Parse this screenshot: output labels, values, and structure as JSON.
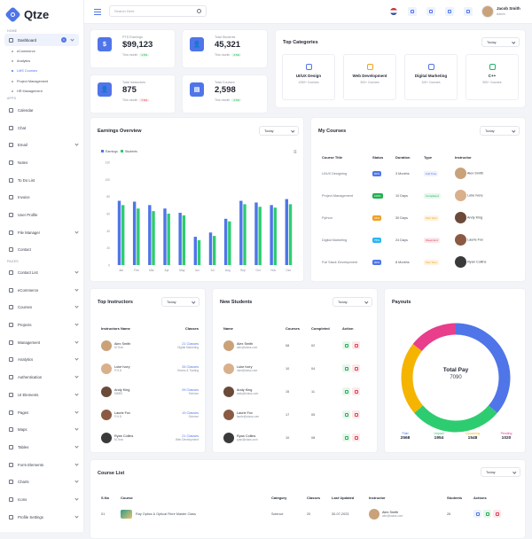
{
  "brand": {
    "name": "Qtze"
  },
  "sidebar": {
    "sections": {
      "home": "HOME",
      "apps": "APPS",
      "pages": "PAGES"
    },
    "dashboard": {
      "label": "Dashboard",
      "badge": "6"
    },
    "sub": [
      "eCommerce",
      "Analytics",
      "LMS Courses",
      "Project Management",
      "HR Management"
    ],
    "apps": [
      "Calendar",
      "Chat",
      "Email",
      "Notes",
      "To Do List",
      "Invoice",
      "User Profile",
      "File Manager",
      "Contact"
    ],
    "pages": [
      "Contact List",
      "eCommerce",
      "Courses",
      "Projects",
      "Management",
      "Analytics",
      "Authentication",
      "UI Elements",
      "Pages",
      "Maps",
      "Tables",
      "Form Elements",
      "Charts",
      "Icons",
      "Profile Settings"
    ]
  },
  "topbar": {
    "search_placeholder": "Search Here",
    "user_name": "Jacob Smith",
    "user_role": "Admin"
  },
  "stats": [
    {
      "label": "PTD Earnings",
      "value": "$99,123",
      "meta": "This month",
      "change": "4.5%",
      "dir": "up",
      "icon": "$"
    },
    {
      "label": "Total Students",
      "value": "45,321",
      "meta": "This month",
      "change": "4.5%",
      "dir": "up",
      "icon": "👤"
    },
    {
      "label": "Total Instructors",
      "value": "875",
      "meta": "This month",
      "change": "7.6%",
      "dir": "dn",
      "icon": "👤"
    },
    {
      "label": "Total Courses",
      "value": "2,598",
      "meta": "This month",
      "change": "4.5%",
      "dir": "up",
      "icon": "▤"
    }
  ],
  "top_categories": {
    "title": "Top Categories",
    "filter": "Today",
    "items": [
      {
        "name": "UI/UX Design",
        "count": "1250+ Courses",
        "color": "#4f75e8"
      },
      {
        "name": "Web Development",
        "count": "300+ Courses",
        "color": "#f0a020"
      },
      {
        "name": "Digital Marketing",
        "count": "100+ Courses",
        "color": "#4f75e8"
      },
      {
        "name": "C++",
        "count": "500+ Courses",
        "color": "#22b070"
      }
    ]
  },
  "earnings": {
    "title": "Earnings Overview",
    "filter": "Today"
  },
  "chart_data": {
    "type": "bar",
    "categories": [
      "Jan",
      "Feb",
      "Mar",
      "Apr",
      "May",
      "Jun",
      "Jul",
      "Aug",
      "Sep",
      "Oct",
      "Nov",
      "Dec"
    ],
    "series": [
      {
        "name": "Earnings",
        "values": [
          75,
          74,
          70,
          66,
          61,
          33,
          38,
          54,
          75,
          73,
          70,
          77
        ],
        "color": "#4f75e8"
      },
      {
        "name": "Students",
        "values": [
          70,
          66,
          63,
          60,
          58,
          29,
          34,
          51,
          71,
          68,
          67,
          71
        ],
        "color": "#2ecc71"
      }
    ],
    "yticks": [
      "120",
      "100",
      "80",
      "60",
      "40",
      "20",
      "0"
    ],
    "ylim": [
      0,
      120
    ],
    "legend": "top-left"
  },
  "my_courses": {
    "title": "My Courses",
    "filter": "Today",
    "headers": [
      "Course Title",
      "Status",
      "Duration",
      "Type",
      "Instructor"
    ],
    "rows": [
      {
        "title": "UI/UX Designing",
        "status": "60%",
        "scolor": "#4f75e8",
        "duration": "3 Months",
        "type": "Full Time",
        "tcolor": "#4f75e8",
        "tbg": "#eef2fd",
        "instructor": "Alex Smith",
        "av": "#c9a27a"
      },
      {
        "title": "Project Management",
        "status": "100%",
        "scolor": "#22b050",
        "duration": "10 Days",
        "type": "Completed",
        "tcolor": "#22b050",
        "tbg": "#e6f7ec",
        "instructor": "Luke Ivory",
        "av": "#d9b08c"
      },
      {
        "title": "Python",
        "status": "35%",
        "scolor": "#f0a020",
        "duration": "30 Days",
        "type": "Part Time",
        "tcolor": "#f0a020",
        "tbg": "#fdf3e1",
        "instructor": "Andy King",
        "av": "#6b4a3a"
      },
      {
        "title": "Digital Marketing",
        "status": "75%",
        "scolor": "#29b6f6",
        "duration": "24 Days",
        "type": "Week End",
        "tcolor": "#e0424f",
        "tbg": "#fde8ea",
        "instructor": "Laurie Fox",
        "av": "#8a5a44"
      },
      {
        "title": "Full Stack Development",
        "status": "90%",
        "scolor": "#4f75e8",
        "duration": "8 Months",
        "type": "Part Time",
        "tcolor": "#f0a020",
        "tbg": "#fdf3e1",
        "instructor": "Ryan Collins",
        "av": "#3a3a3a"
      }
    ]
  },
  "top_instructors": {
    "title": "Top Instructors",
    "filter": "Today",
    "headers": [
      "Instructors Name",
      "Classes"
    ],
    "rows": [
      {
        "name": "Alex Smith",
        "sub": "M.Tech",
        "classes": "21 Classes",
        "topic": "Digital Marketing",
        "av": "#c9a27a"
      },
      {
        "name": "Luke Ivory",
        "sub": "P.H.D.",
        "classes": "26 Classes",
        "topic": "Stocks & Trading",
        "av": "#d9b08c"
      },
      {
        "name": "Andy King",
        "sub": "MBBS",
        "classes": "09 Classes",
        "topic": "Science",
        "av": "#6b4a3a"
      },
      {
        "name": "Laurie Fox",
        "sub": "P.H.D.",
        "classes": "19 Classes",
        "topic": "Science",
        "av": "#8a5a44"
      },
      {
        "name": "Ryan Collins",
        "sub": "M.Tech",
        "classes": "21 Classes",
        "topic": "Web Development",
        "av": "#3a3a3a"
      }
    ]
  },
  "new_students": {
    "title": "New Students",
    "filter": "Today",
    "headers": [
      "Name",
      "Courses",
      "Completed",
      "Action"
    ],
    "rows": [
      {
        "name": "Alex Smith",
        "email": "alex@class.com",
        "courses": "08",
        "completed": "02",
        "av": "#c9a27a"
      },
      {
        "name": "Luke Ivory",
        "email": "luke@class.com",
        "courses": "10",
        "completed": "04",
        "av": "#d9b08c"
      },
      {
        "name": "Andy King",
        "email": "andy@class.com",
        "courses": "15",
        "completed": "11",
        "av": "#6b4a3a"
      },
      {
        "name": "Laurie Fox",
        "email": "laurie@class.com",
        "courses": "17",
        "completed": "05",
        "av": "#8a5a44"
      },
      {
        "name": "Ryan Collins",
        "email": "ryan@class.com",
        "courses": "10",
        "completed": "08",
        "av": "#3a3a3a"
      }
    ]
  },
  "payouts": {
    "title": "Payouts",
    "center_label": "Total Pay",
    "center_value": "7090",
    "items": [
      {
        "label": "Paid",
        "value": "2568",
        "color": "#4f75e8"
      },
      {
        "label": "Unpaid",
        "value": "1954",
        "color": "#2ecc71"
      },
      {
        "label": "Upcoming",
        "value": "1548",
        "color": "#f5b400"
      },
      {
        "label": "Pending",
        "value": "1020",
        "color": "#e83e8c"
      }
    ]
  },
  "course_list": {
    "title": "Course List",
    "filter": "Today",
    "headers": [
      "S.No",
      "Course",
      "Category",
      "Classes",
      "Last Updated",
      "Instructor",
      "Students",
      "Actions"
    ],
    "rows": [
      {
        "no": "01",
        "course": "Ray Optics & Optical Fibre Master Class",
        "category": "Science",
        "classes": "20",
        "updated": "30-07-2023",
        "instructor": "Alex Smith",
        "email": "alex@class.com",
        "students": "26"
      }
    ]
  }
}
